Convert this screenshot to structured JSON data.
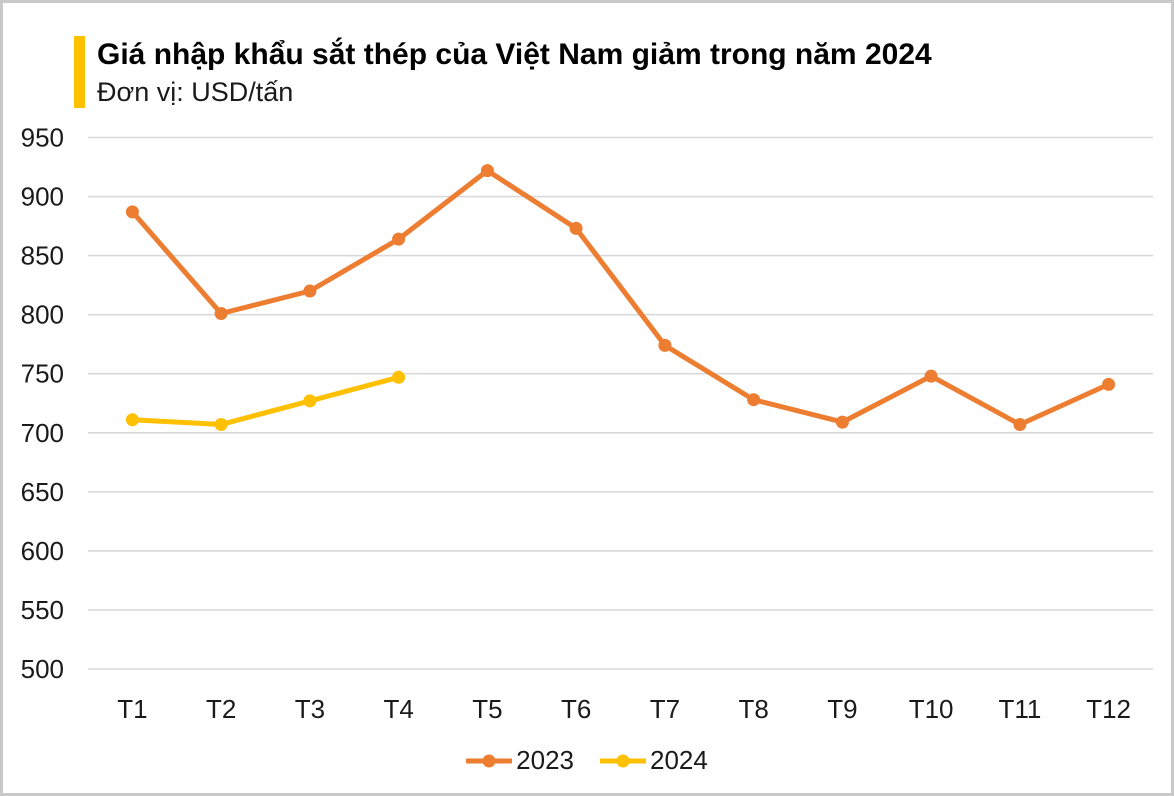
{
  "header": {
    "title": "Giá nhập khẩu sắt thép của Việt Nam giảm trong năm 2024",
    "subtitle": "Đơn vị: USD/tấn"
  },
  "colors": {
    "accent_bar": "#FFC000",
    "series_2023": "#ED7D31",
    "series_2024": "#FFC000",
    "gridline": "#D9D9D9",
    "tick_text": "#1a1a1a",
    "frame_border": "#C9C9C9"
  },
  "chart_data": {
    "type": "line",
    "title": "Giá nhập khẩu sắt thép của Việt Nam giảm trong năm 2024",
    "unit_label": "Đơn vị: USD/tấn",
    "categories": [
      "T1",
      "T2",
      "T3",
      "T4",
      "T5",
      "T6",
      "T7",
      "T8",
      "T9",
      "T10",
      "T11",
      "T12"
    ],
    "series": [
      {
        "name": "2023",
        "color": "#ED7D31",
        "values": [
          887,
          801,
          820,
          864,
          922,
          873,
          774,
          728,
          709,
          748,
          707,
          741
        ]
      },
      {
        "name": "2024",
        "color": "#FFC000",
        "values": [
          711,
          707,
          727,
          747
        ]
      }
    ],
    "ylim": [
      500,
      950
    ],
    "ytick_step": 50,
    "grid": "horizontal-only",
    "legend_position": "bottom-center",
    "legend_labels": [
      "2023",
      "2024"
    ]
  }
}
